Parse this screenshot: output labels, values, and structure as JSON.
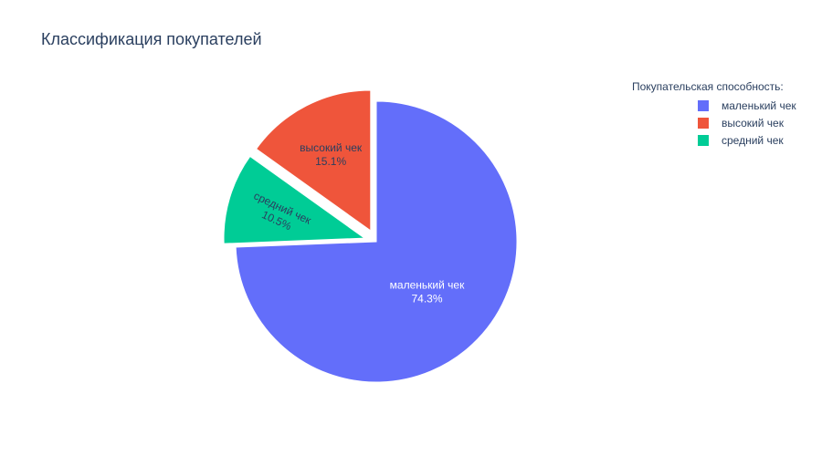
{
  "chart_data": {
    "type": "pie",
    "title": "Классификация покупателей",
    "legend_title": "Покупательская способность:",
    "legend_position": "top-right",
    "slices": [
      {
        "label": "маленький чек",
        "percent": 74.3,
        "percent_label": "74.3%",
        "color": "#636efa",
        "label_color": "#ffffff",
        "pulled": false
      },
      {
        "label": "средний чек",
        "percent": 10.5,
        "percent_label": "10.5%",
        "color": "#00cc96",
        "label_color": "#2a3f5f",
        "pulled": true
      },
      {
        "label": "высокий чек",
        "percent": 15.1,
        "percent_label": "15.1%",
        "color": "#ef553b",
        "label_color": "#2a3f5f",
        "pulled": true
      }
    ],
    "legend_order": [
      "маленький чек",
      "высокий чек",
      "средний чек"
    ],
    "direction": "clockwise"
  }
}
